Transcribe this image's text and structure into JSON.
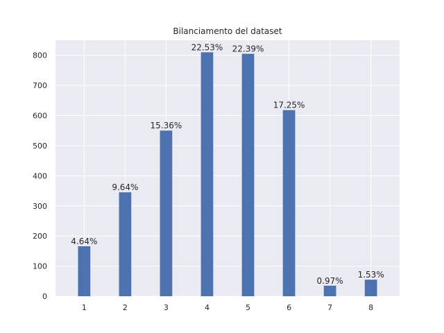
{
  "chart_data": {
    "type": "bar",
    "title": "Bilanciamento del dataset",
    "xlabel": "",
    "ylabel": "",
    "categories": [
      "1",
      "2",
      "3",
      "4",
      "5",
      "6",
      "7",
      "8"
    ],
    "values": [
      166,
      345,
      550,
      810,
      805,
      618,
      35,
      55
    ],
    "data_labels": [
      "4.64%",
      "9.64%",
      "15.36%",
      "22.53%",
      "22.39%",
      "17.25%",
      "0.97%",
      "1.53%"
    ],
    "ylim": [
      0,
      850
    ],
    "yticks": [
      0,
      100,
      200,
      300,
      400,
      500,
      600,
      700,
      800
    ],
    "grid": true,
    "bar_color": "#4c72b0",
    "background_color": "#eaeaf2"
  }
}
